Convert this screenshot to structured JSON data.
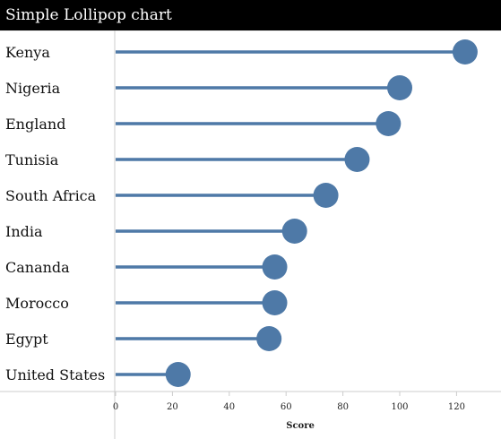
{
  "chart_data": {
    "type": "lollipop",
    "title": "Simple Lollipop chart",
    "xlabel": "Score",
    "ylabel": "",
    "xlim": [
      0,
      130
    ],
    "xticks": [
      0,
      20,
      40,
      60,
      80,
      100,
      120
    ],
    "grid": false,
    "categories": [
      "Kenya",
      "Nigeria",
      "England",
      "Tunisia",
      "South Africa",
      "India",
      "Cananda",
      "Morocco",
      "Egypt",
      "United States"
    ],
    "values": [
      123,
      100,
      96,
      85,
      74,
      63,
      56,
      56,
      54,
      22
    ],
    "color": "#4e79a7"
  },
  "colors": {
    "header_bg": "#000000",
    "header_text": "#ffffff",
    "axis": "#cccccc"
  }
}
